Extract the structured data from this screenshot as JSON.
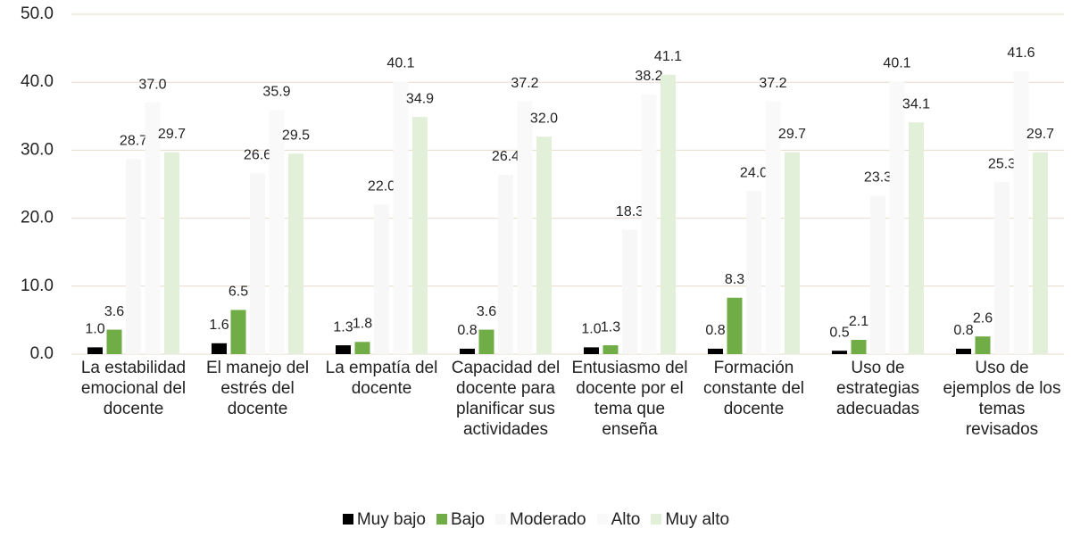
{
  "chart_data": {
    "type": "bar",
    "categories": [
      "La estabilidad emocional del docente",
      "El manejo del estrés del docente",
      "La empatía del docente",
      "Capacidad del docente para planificar sus actividades",
      "Entusiasmo del docente por el tema que enseña",
      "Formación constante del docente",
      "Uso de estrategias adecuadas",
      "Uso de ejemplos de los temas revisados"
    ],
    "series": [
      {
        "name": "Muy bajo",
        "color": "#000000",
        "values": [
          1.0,
          1.6,
          1.3,
          0.8,
          1.0,
          0.8,
          0.5,
          0.8
        ],
        "value_labels": [
          "1.0",
          "1.6",
          "1.3",
          "0.8",
          "1.0",
          "0.8",
          "0.5",
          "0.8"
        ]
      },
      {
        "name": "Bajo",
        "color": "#70ad47",
        "values": [
          3.6,
          6.5,
          1.8,
          3.6,
          1.3,
          8.3,
          2.1,
          2.6
        ],
        "value_labels": [
          "3.6",
          "6.5",
          "1.8",
          "3.6",
          "1.3",
          "8.3",
          "2.1",
          "2.6"
        ]
      },
      {
        "name": "Moderado",
        "color": "#f7f7f7",
        "values": [
          28.7,
          26.6,
          22.0,
          26.4,
          18.3,
          24.0,
          23.3,
          25.3
        ],
        "value_labels": [
          "28.7",
          "26.6",
          "22.0",
          "26.4",
          "18.3",
          "24.0",
          "23.3",
          "25.3"
        ]
      },
      {
        "name": "Alto",
        "color": "#f9f9f9",
        "values": [
          37.0,
          35.9,
          40.1,
          37.2,
          38.2,
          37.2,
          40.1,
          41.6
        ],
        "value_labels": [
          "37.0",
          "35.9",
          "40.1",
          "37.2",
          "38.2",
          "37.2",
          "40.1",
          "41.6"
        ]
      },
      {
        "name": "Muy alto",
        "color": "#e2f0d9",
        "values": [
          29.7,
          29.5,
          34.9,
          32.0,
          41.1,
          29.7,
          34.1,
          29.7
        ],
        "value_labels": [
          "29.7",
          "29.5",
          "34.9",
          "32.0",
          "41.1",
          "29.7",
          "34.1",
          "29.7"
        ]
      }
    ],
    "ylim": [
      0,
      50
    ],
    "yticks": [
      {
        "value": 0,
        "label": "0.0"
      },
      {
        "value": 10,
        "label": "10.0"
      },
      {
        "value": 20,
        "label": "20.0"
      },
      {
        "value": 30,
        "label": "30.0"
      },
      {
        "value": 40,
        "label": "40.0"
      },
      {
        "value": 50,
        "label": "50.0"
      }
    ],
    "grid": true,
    "legend": "bottom"
  }
}
